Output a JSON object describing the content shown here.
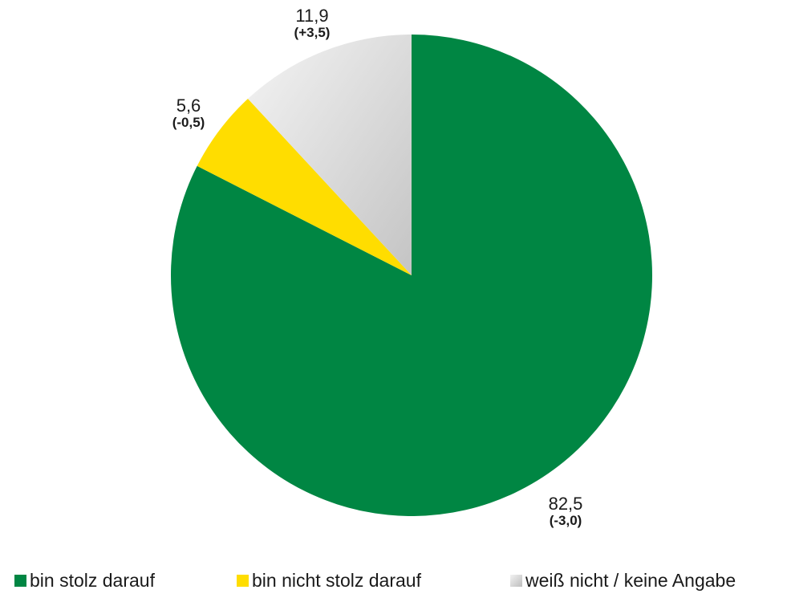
{
  "chart_data": {
    "type": "pie",
    "title": "",
    "categories": [
      "bin stolz darauf",
      "bin nicht stolz darauf",
      "weiß nicht / keine Angabe"
    ],
    "values": [
      82.5,
      5.6,
      11.9
    ],
    "changes": [
      "(-3,0)",
      "(-0,5)",
      "(+3,5)"
    ],
    "value_labels": [
      "82,5",
      "5,6",
      "11,9"
    ],
    "colors": [
      "#008643",
      "#FFDD00",
      "#D3D3D3"
    ],
    "legend_position": "bottom",
    "start": "12 o'clock",
    "direction": "clockwise"
  },
  "legend": {
    "items": [
      {
        "label": "bin stolz darauf",
        "color": "#008643"
      },
      {
        "label": "bin nicht stolz darauf",
        "color": "#FFDD00"
      },
      {
        "label": "weiß nicht / keine Angabe",
        "color": "#CFCFCF"
      }
    ]
  }
}
